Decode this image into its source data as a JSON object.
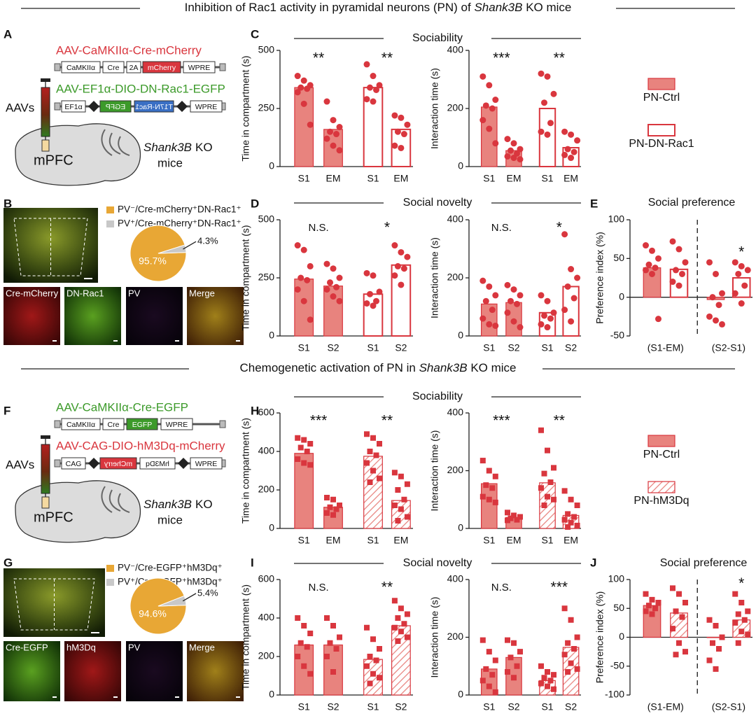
{
  "headers": [
    {
      "parts": [
        "Inhibition of Rac1 activity in pyramidal neurons (PN) of ",
        "Shank3B",
        " KO mice"
      ]
    },
    {
      "parts": [
        "Chemogenetic activation of PN in ",
        "Shank3B",
        " KO mice"
      ]
    }
  ],
  "panel_labels": [
    "A",
    "B",
    "C",
    "D",
    "E",
    "F",
    "G",
    "H",
    "I",
    "J"
  ],
  "section_titles": [
    "Sociability",
    "Social novelty",
    "Social preference",
    "Sociability",
    "Social novelty",
    "Social preference"
  ],
  "schematics": [
    {
      "vectors": [
        {
          "name": "AAV-CaMKIIα-Cre-mCherry",
          "elements": [
            "CaMKIIα",
            "Cre",
            "2A",
            "mCherry",
            "WPRE"
          ]
        },
        {
          "name": "AAV-EF1α-DIO-DN-Rac1-EGFP",
          "elements": [
            "EF1α",
            "EGFP",
            "T17N-Rac1",
            "WPRE"
          ]
        }
      ],
      "injection": "AAVs",
      "region": "mPFC",
      "mouse_line": "Shank3B",
      "mouse_rest": "KO",
      "mouse_word": "mice"
    },
    {
      "vectors": [
        {
          "name": "AAV-CaMKIIα-Cre-EGFP",
          "elements": [
            "CaMKIIα",
            "Cre",
            "EGFP",
            "WPRE"
          ]
        },
        {
          "name": "AAV-CAG-DIO-hM3Dq-mCherry",
          "elements": [
            "CAG",
            "mCherry",
            "hM3Dq",
            "WPRE"
          ]
        }
      ],
      "injection": "AAVs",
      "region": "mPFC",
      "mouse_line": "Shank3B",
      "mouse_rest": "KO",
      "mouse_word": "mice"
    }
  ],
  "micrographs": [
    {
      "labels": [
        "Cre-mCherry",
        "DN-Rac1",
        "PV",
        "Merge"
      ]
    },
    {
      "labels": [
        "Cre-EGFP",
        "hM3Dq",
        "PV",
        "Merge"
      ]
    }
  ],
  "chart_data": [
    {
      "type": "bar",
      "ylabel": "Time in compartment (s)",
      "categories": [
        "S1",
        "EM",
        "S1",
        "EM"
      ],
      "ylim": [
        0,
        500
      ],
      "yticks": [
        0,
        250,
        500
      ],
      "annotations": [
        "**",
        "**"
      ],
      "marker": "circle",
      "marker_color": "#d9363e",
      "series": [
        {
          "name": "PN-Ctrl",
          "pattern": "solid",
          "color": "#e8837e",
          "edge": "#d9363e",
          "values": [
            340,
            160,
            null,
            null
          ],
          "points": [
            [
              390,
              370,
              350,
              340,
              335,
              320,
              270,
              180
            ],
            [
              280,
              200,
              170,
              150,
              140,
              120,
              90,
              70
            ],
            null,
            null
          ]
        },
        {
          "name": "PN-DN-Rac1",
          "pattern": "open",
          "color": "#ffffff",
          "edge": "#d9363e",
          "values": [
            null,
            null,
            340,
            160
          ],
          "points": [
            null,
            null,
            [
              440,
              390,
              350,
              340,
              330,
              290,
              280
            ],
            [
              220,
              210,
              180,
              150,
              140,
              90,
              80
            ]
          ]
        }
      ]
    },
    {
      "type": "bar",
      "ylabel": "Interaction time (s)",
      "categories": [
        "S1",
        "EM",
        "S1",
        "EM"
      ],
      "ylim": [
        0,
        400
      ],
      "yticks": [
        0,
        200,
        400
      ],
      "annotations": [
        "***",
        "**"
      ],
      "marker": "circle",
      "marker_color": "#d9363e",
      "series": [
        {
          "pattern": "solid",
          "color": "#e8837e",
          "edge": "#d9363e",
          "values": [
            205,
            55,
            null,
            null
          ],
          "points": [
            [
              310,
              280,
              230,
              210,
              200,
              160,
              130,
              80
            ],
            [
              95,
              80,
              60,
              55,
              45,
              35,
              30,
              25
            ],
            null,
            null
          ]
        },
        {
          "pattern": "open",
          "color": "#ffffff",
          "edge": "#d9363e",
          "values": [
            null,
            null,
            200,
            65
          ],
          "points": [
            null,
            null,
            [
              320,
              310,
              250,
              220,
              150,
              120,
              110
            ],
            [
              120,
              110,
              90,
              60,
              50,
              40,
              30
            ]
          ]
        }
      ]
    },
    {
      "type": "bar",
      "ylabel": "Time in compartment (s)",
      "categories": [
        "S1",
        "S2",
        "S1",
        "S2"
      ],
      "ylim": [
        0,
        500
      ],
      "yticks": [
        0,
        250,
        500
      ],
      "annotations": [
        "N.S.",
        "*"
      ],
      "marker": "circle",
      "marker_color": "#d9363e",
      "series": [
        {
          "pattern": "solid",
          "color": "#e8837e",
          "edge": "#d9363e",
          "values": [
            245,
            215,
            null,
            null
          ],
          "points": [
            [
              390,
              370,
              300,
              250,
              240,
              200,
              150,
              70
            ],
            [
              310,
              290,
              250,
              230,
              210,
              200,
              170,
              150
            ],
            null,
            null
          ]
        },
        {
          "pattern": "open",
          "color": "#ffffff",
          "edge": "#d9363e",
          "values": [
            null,
            null,
            180,
            305
          ],
          "points": [
            null,
            null,
            [
              270,
              260,
              190,
              180,
              150,
              140,
              130
            ],
            [
              390,
              360,
              340,
              300,
              290,
              260,
              220
            ]
          ]
        }
      ]
    },
    {
      "type": "bar",
      "ylabel": "Interaction time (s)",
      "categories": [
        "S1",
        "S2",
        "S1",
        "S2"
      ],
      "ylim": [
        0,
        400
      ],
      "yticks": [
        0,
        200,
        400
      ],
      "annotations": [
        "N.S.",
        "*"
      ],
      "marker": "circle",
      "marker_color": "#d9363e",
      "series": [
        {
          "pattern": "solid",
          "color": "#e8837e",
          "edge": "#d9363e",
          "values": [
            110,
            115,
            null,
            null
          ],
          "points": [
            [
              190,
              170,
              140,
              120,
              90,
              60,
              40,
              35
            ],
            [
              175,
              160,
              140,
              120,
              110,
              80,
              50,
              30
            ],
            null,
            null
          ]
        },
        {
          "pattern": "open",
          "color": "#ffffff",
          "edge": "#d9363e",
          "values": [
            null,
            null,
            80,
            170
          ],
          "points": [
            null,
            null,
            [
              140,
              120,
              80,
              70,
              60,
              40,
              30
            ],
            [
              350,
              230,
              200,
              170,
              130,
              90,
              50
            ]
          ]
        }
      ]
    },
    {
      "type": "bar",
      "ylabel": "Preference index (%)",
      "categories": [
        "(S1-EM)",
        "(S2-S1)"
      ],
      "ylim": [
        -50,
        100
      ],
      "yticks": [
        -50,
        0,
        50,
        100
      ],
      "annotations": [
        "*"
      ],
      "marker": "circle",
      "marker_color": "#d9363e",
      "series": [
        {
          "pattern": "solid",
          "color": "#e8837e",
          "edge": "#d9363e",
          "values": [
            38,
            -3
          ],
          "points": [
            [
              67,
              60,
              50,
              42,
              38,
              35,
              30,
              -28
            ],
            [
              45,
              30,
              5,
              0,
              -10,
              -25,
              -30,
              -35
            ]
          ]
        },
        {
          "pattern": "open",
          "color": "#ffffff",
          "edge": "#d9363e",
          "values": [
            36,
            25
          ],
          "points": [
            [
              72,
              62,
              45,
              35,
              30,
              20,
              15
            ],
            [
              45,
              40,
              35,
              30,
              15,
              5,
              -8
            ]
          ]
        }
      ]
    },
    {
      "type": "bar",
      "ylabel": "Time in compartment (s)",
      "categories": [
        "S1",
        "EM",
        "S1",
        "EM"
      ],
      "ylim": [
        0,
        600
      ],
      "yticks": [
        0,
        200,
        400,
        600
      ],
      "annotations": [
        "***",
        "**"
      ],
      "marker": "square",
      "marker_color": "#d9363e",
      "series": [
        {
          "name": "PN-Ctrl",
          "pattern": "solid",
          "color": "#e8837e",
          "edge": "#d9363e",
          "values": [
            390,
            110,
            null,
            null
          ],
          "points": [
            [
              470,
              460,
              440,
              420,
              400,
              360,
              340,
              330
            ],
            [
              160,
              150,
              120,
              110,
              100,
              80,
              70
            ],
            null,
            null
          ]
        },
        {
          "name": "PN-hM3Dq",
          "pattern": "hatch",
          "color": "#e8837e",
          "edge": "#d9363e",
          "values": [
            null,
            null,
            375,
            145
          ],
          "points": [
            null,
            null,
            [
              490,
              470,
              440,
              400,
              380,
              340,
              300,
              260,
              240
            ],
            [
              290,
              270,
              230,
              200,
              150,
              120,
              100,
              60,
              40
            ]
          ]
        }
      ]
    },
    {
      "type": "bar",
      "ylabel": "Interaction time (s)",
      "categories": [
        "S1",
        "EM",
        "S1",
        "EM"
      ],
      "ylim": [
        0,
        400
      ],
      "yticks": [
        0,
        200,
        400
      ],
      "annotations": [
        "***",
        "**"
      ],
      "marker": "square",
      "marker_color": "#d9363e",
      "series": [
        {
          "pattern": "solid",
          "color": "#e8837e",
          "edge": "#d9363e",
          "values": [
            155,
            38,
            null,
            null
          ],
          "points": [
            [
              235,
              200,
              180,
              150,
              140,
              110,
              100,
              90
            ],
            [
              55,
              45,
              40,
              35,
              30,
              28
            ],
            null,
            null
          ]
        },
        {
          "pattern": "hatch",
          "color": "#e8837e",
          "edge": "#d9363e",
          "values": [
            null,
            null,
            158,
            45
          ],
          "points": [
            null,
            null,
            [
              340,
              270,
              210,
              190,
              160,
              140,
              110,
              100,
              80
            ],
            [
              130,
              100,
              80,
              50,
              40,
              30,
              20,
              10,
              5
            ]
          ]
        }
      ]
    },
    {
      "type": "bar",
      "ylabel": "Time in compartment (s)",
      "categories": [
        "S1",
        "S2",
        "S1",
        "S2"
      ],
      "ylim": [
        0,
        600
      ],
      "yticks": [
        0,
        200,
        400,
        600
      ],
      "annotations": [
        "N.S.",
        "**"
      ],
      "marker": "square",
      "marker_color": "#d9363e",
      "series": [
        {
          "pattern": "solid",
          "color": "#e8837e",
          "edge": "#d9363e",
          "values": [
            260,
            260,
            null,
            null
          ],
          "points": [
            [
              400,
              360,
              320,
              270,
              250,
              200,
              150,
              110
            ],
            [
              400,
              360,
              300,
              270,
              240,
              200,
              120
            ],
            null,
            null
          ]
        },
        {
          "pattern": "hatch",
          "color": "#e8837e",
          "edge": "#d9363e",
          "values": [
            null,
            null,
            185,
            360
          ],
          "points": [
            null,
            null,
            [
              350,
              290,
              240,
              200,
              180,
              150,
              110,
              90,
              60
            ],
            [
              490,
              450,
              420,
              400,
              370,
              350,
              330,
              300,
              280
            ]
          ]
        }
      ]
    },
    {
      "type": "bar",
      "ylabel": "Interaction time (s)",
      "categories": [
        "S1",
        "S2",
        "S1",
        "S2"
      ],
      "ylim": [
        0,
        400
      ],
      "yticks": [
        0,
        200,
        400
      ],
      "annotations": [
        "N.S.",
        "***"
      ],
      "marker": "square",
      "marker_color": "#d9363e",
      "series": [
        {
          "pattern": "solid",
          "color": "#e8837e",
          "edge": "#d9363e",
          "values": [
            90,
            130,
            null,
            null
          ],
          "points": [
            [
              190,
              150,
              120,
              90,
              70,
              50,
              30,
              10
            ],
            [
              190,
              180,
              150,
              130,
              100,
              80,
              60
            ],
            null,
            null
          ]
        },
        {
          "pattern": "hatch",
          "color": "#e8837e",
          "edge": "#d9363e",
          "values": [
            null,
            null,
            50,
            165
          ],
          "points": [
            null,
            null,
            [
              100,
              80,
              70,
              60,
              50,
              40,
              30,
              20
            ],
            [
              300,
              260,
              200,
              180,
              160,
              140,
              110,
              90,
              80
            ]
          ]
        }
      ]
    },
    {
      "type": "bar",
      "ylabel": "Preference index (%)",
      "categories": [
        "(S1-EM)",
        "(S2-S1)"
      ],
      "ylim": [
        -100,
        100
      ],
      "yticks": [
        -100,
        -50,
        0,
        50,
        100
      ],
      "annotations": [
        "*"
      ],
      "marker": "square",
      "marker_color": "#d9363e",
      "series": [
        {
          "pattern": "solid",
          "color": "#e8837e",
          "edge": "#d9363e",
          "values": [
            55,
            0
          ],
          "points": [
            [
              75,
              65,
              60,
              55,
              50,
              45,
              40
            ],
            [
              30,
              20,
              0,
              -10,
              -20,
              -40,
              -55
            ]
          ]
        },
        {
          "pattern": "hatch",
          "color": "#e8837e",
          "edge": "#d9363e",
          "values": [
            42,
            30
          ],
          "points": [
            [
              85,
              75,
              60,
              45,
              35,
              15,
              -10,
              -25,
              -30
            ],
            [
              75,
              60,
              45,
              40,
              30,
              25,
              10,
              5,
              -10
            ]
          ]
        }
      ]
    },
    {
      "type": "pie",
      "categories": [
        "PV⁻/Cre-mCherry⁺DN-Rac1⁺",
        "PV⁺/Cre-mCherry⁺DN-Rac1⁺"
      ],
      "values": [
        95.7,
        4.3
      ],
      "value_labels": [
        "95.7%",
        "4.3%"
      ],
      "colors": [
        "#e8a735",
        "#c8c8c8"
      ]
    },
    {
      "type": "pie",
      "categories": [
        "PV⁻/Cre-EGFP⁺hM3Dq⁺",
        "PV⁺/Cre-EGFP⁺hM3Dq⁺"
      ],
      "values": [
        94.6,
        5.4
      ],
      "value_labels": [
        "94.6%",
        "5.4%"
      ],
      "colors": [
        "#e8a735",
        "#c8c8c8"
      ]
    }
  ]
}
